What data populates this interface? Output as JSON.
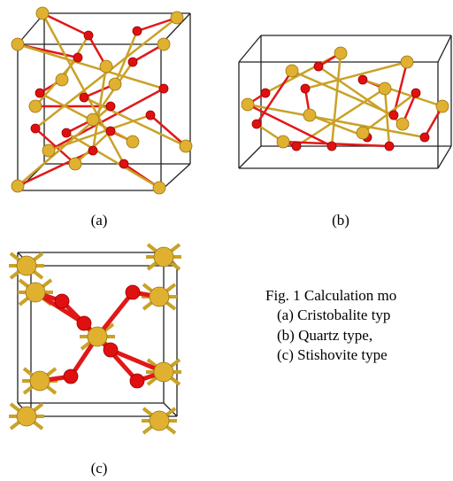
{
  "figure": {
    "panels": [
      {
        "label": "(a)"
      },
      {
        "label": "(b)"
      },
      {
        "label": "(c)"
      }
    ],
    "caption": {
      "title": "Fig. 1 Calculation mo",
      "items": [
        "(a) Cristobalite typ",
        "(b) Quartz type,",
        "(c) Stishovite type"
      ]
    }
  }
}
